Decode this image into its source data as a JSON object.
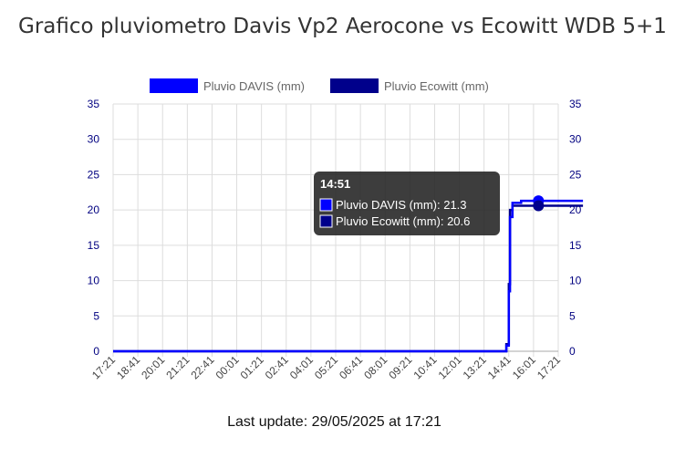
{
  "title": "Grafico pluviometro Davis Vp2 Aerocone vs Ecowitt WDB 5+1",
  "footer": "Last update: 29/05/2025 at 17:21",
  "colors": {
    "davis": "#0000ff",
    "ecowitt": "#00008b",
    "tick_label": "#000080",
    "grid": "#dddddd",
    "legend_text": "#666666",
    "tooltip_bg": "#222222"
  },
  "chart_data": {
    "type": "line",
    "x_categories": [
      "17:21",
      "18:41",
      "20:01",
      "21:21",
      "22:41",
      "00:01",
      "01:21",
      "02:41",
      "04:01",
      "05:21",
      "06:41",
      "08:01",
      "09:21",
      "10:41",
      "12:01",
      "13:21",
      "14:41",
      "16:01",
      "17:21"
    ],
    "ylim": [
      0,
      35
    ],
    "y_ticks": [
      0,
      5,
      10,
      15,
      20,
      25,
      30,
      35
    ],
    "grid": true,
    "legend_position": "top",
    "series": [
      {
        "name": "Pluvio DAVIS (mm)",
        "color": "#0000ff",
        "points": [
          [
            0,
            0
          ],
          [
            15.9,
            0
          ],
          [
            15.9,
            0.8
          ],
          [
            16.0,
            0.8
          ],
          [
            16.0,
            8.5
          ],
          [
            16.05,
            8.5
          ],
          [
            16.05,
            19.0
          ],
          [
            16.15,
            19.0
          ],
          [
            16.15,
            21.0
          ],
          [
            16.5,
            21.0
          ],
          [
            16.5,
            21.3
          ],
          [
            19,
            21.3
          ]
        ]
      },
      {
        "name": "Pluvio Ecowitt (mm)",
        "color": "#00008b",
        "points": [
          [
            0,
            0
          ],
          [
            15.9,
            0
          ],
          [
            15.9,
            1.0
          ],
          [
            16.0,
            1.0
          ],
          [
            16.0,
            9.5
          ],
          [
            16.05,
            9.5
          ],
          [
            16.05,
            20.0
          ],
          [
            16.15,
            20.0
          ],
          [
            16.15,
            20.6
          ],
          [
            19,
            20.6
          ]
        ]
      }
    ],
    "tooltip": {
      "title": "14:51",
      "x": 17.2,
      "lines": [
        {
          "label": "Pluvio DAVIS (mm): 21.3",
          "color": "#0000ff",
          "value": 21.3
        },
        {
          "label": "Pluvio Ecowitt (mm): 20.6",
          "color": "#00008b",
          "value": 20.6
        }
      ]
    }
  }
}
